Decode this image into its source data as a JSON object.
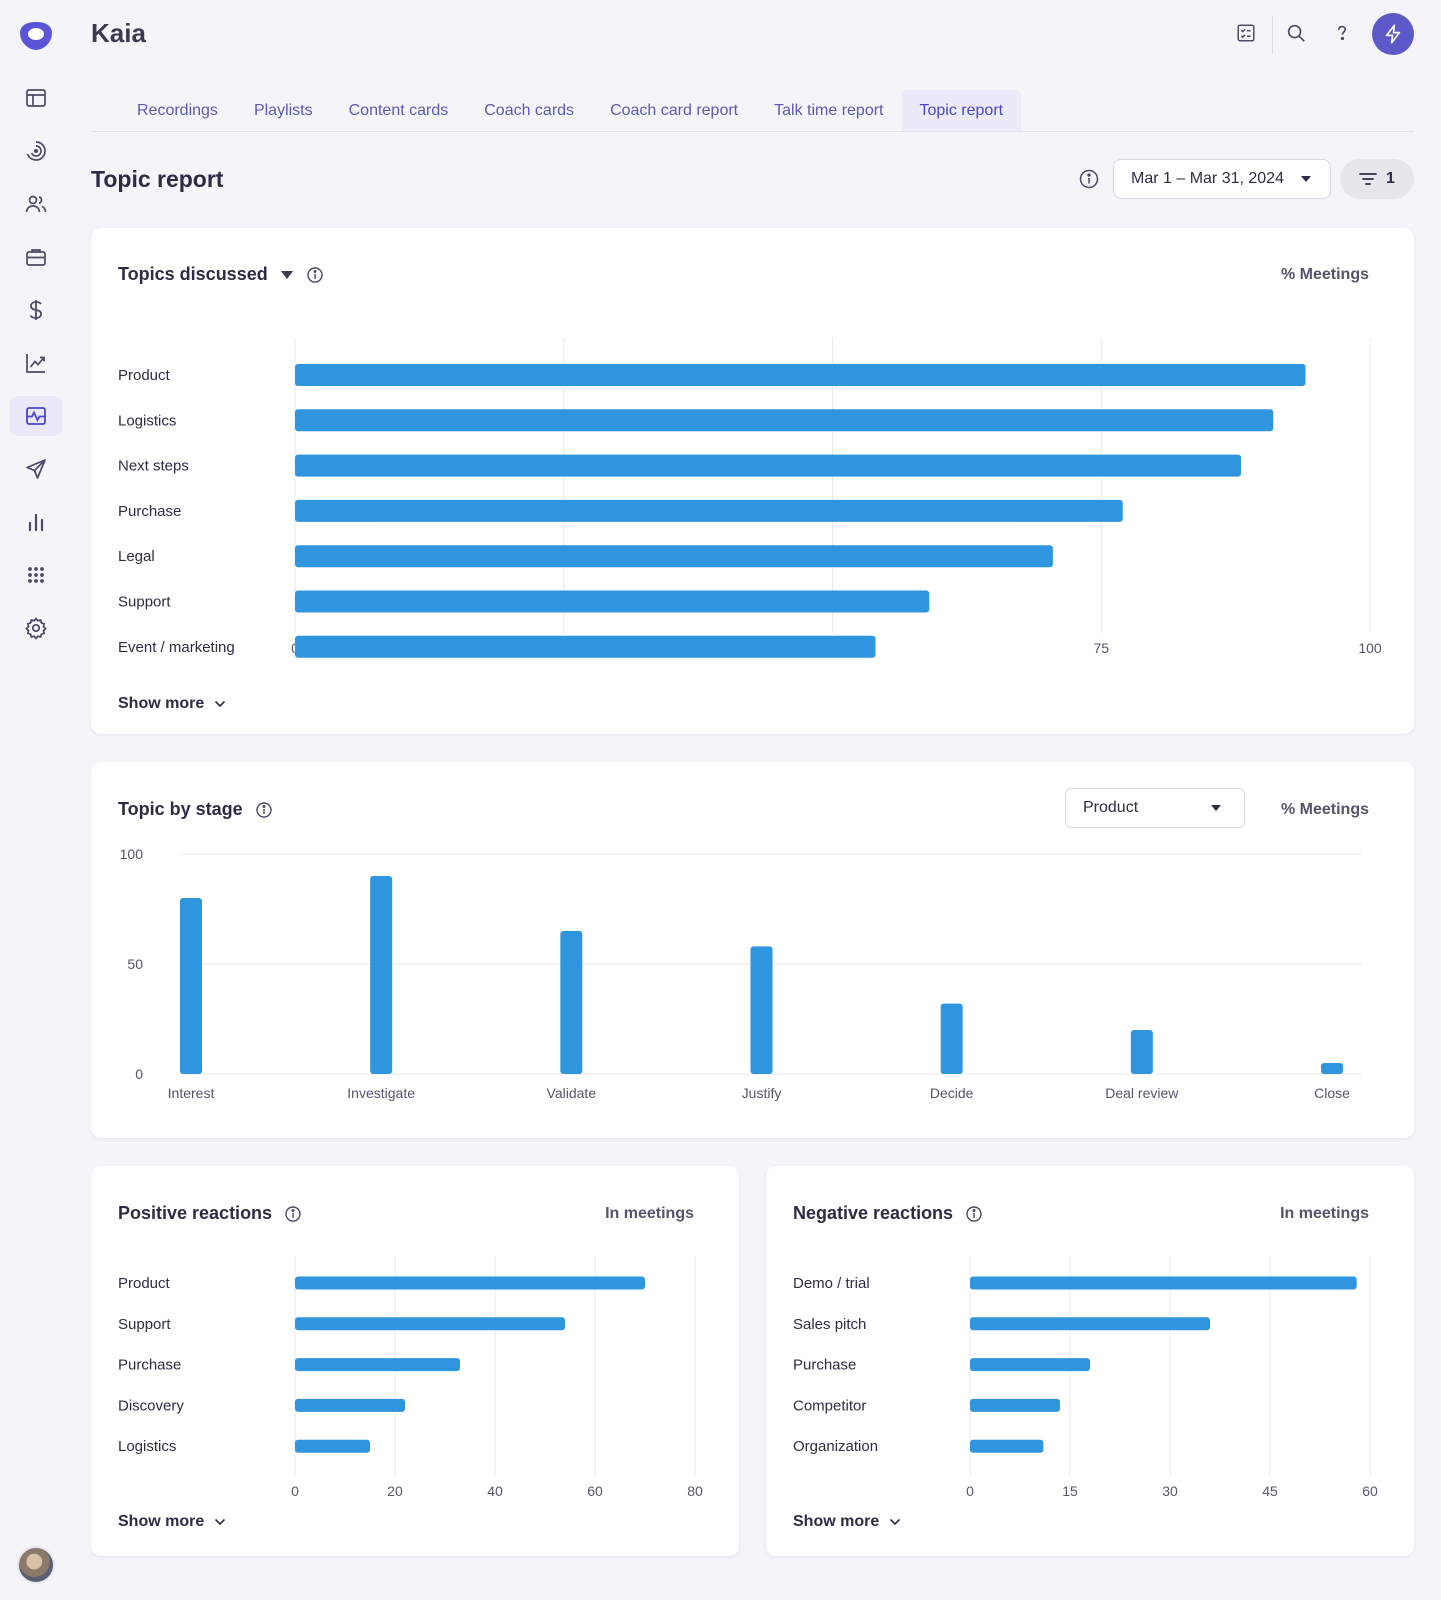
{
  "app": {
    "title": "Kaia"
  },
  "tabs": [
    {
      "label": "Recordings",
      "active": false
    },
    {
      "label": "Playlists",
      "active": false
    },
    {
      "label": "Content cards",
      "active": false
    },
    {
      "label": "Coach cards",
      "active": false
    },
    {
      "label": "Coach card report",
      "active": false
    },
    {
      "label": "Talk time report",
      "active": false
    },
    {
      "label": "Topic report",
      "active": true
    }
  ],
  "sidebar": {
    "items": [
      {
        "icon": "layout-icon",
        "active": false
      },
      {
        "icon": "spiral-icon",
        "active": false
      },
      {
        "icon": "people-icon",
        "active": false
      },
      {
        "icon": "briefcase-icon",
        "active": false
      },
      {
        "icon": "dollar-icon",
        "active": false
      },
      {
        "icon": "trend-chart-icon",
        "active": false
      },
      {
        "icon": "activity-icon",
        "active": true
      },
      {
        "icon": "send-icon",
        "active": false
      },
      {
        "icon": "bar-chart-icon",
        "active": false
      },
      {
        "icon": "apps-grid-icon",
        "active": false
      },
      {
        "icon": "settings-icon",
        "active": false
      }
    ]
  },
  "header": {
    "icons": [
      "checklist-icon",
      "search-icon",
      "help-icon",
      "bolt-icon"
    ]
  },
  "page": {
    "title": "Topic report",
    "date_range": "Mar 1 – Mar 31, 2024",
    "filter_count": "1"
  },
  "colors": {
    "accent": "#5d59c9",
    "bar": "#2f95de",
    "tab_text": "#5d59b4"
  },
  "cards": {
    "topics_discussed": {
      "title": "Topics discussed",
      "unit": "% Meetings",
      "show_more": "Show more"
    },
    "topic_by_stage": {
      "title": "Topic by stage",
      "unit": "% Meetings",
      "select_value": "Product"
    },
    "positive": {
      "title": "Positive reactions",
      "unit": "In meetings",
      "show_more": "Show more"
    },
    "negative": {
      "title": "Negative reactions",
      "unit": "In meetings",
      "show_more": "Show more"
    }
  },
  "chart_data": [
    {
      "type": "bar",
      "orientation": "horizontal",
      "title": "Topics discussed",
      "unit": "% Meetings",
      "categories": [
        "Product",
        "Logistics",
        "Next steps",
        "Purchase",
        "Legal",
        "Support",
        "Event / marketing"
      ],
      "values": [
        94,
        91,
        88,
        77,
        70.5,
        59,
        54
      ],
      "xlim": [
        0,
        100
      ],
      "ticks": [
        "0",
        "25",
        "50",
        "75",
        "100"
      ],
      "grid": true
    },
    {
      "type": "bar",
      "orientation": "vertical",
      "title": "Topic by stage",
      "unit": "% Meetings",
      "categories": [
        "Interest",
        "Investigate",
        "Validate",
        "Justify",
        "Decide",
        "Deal review",
        "Close"
      ],
      "values": [
        80,
        90,
        65,
        58,
        32,
        20,
        5
      ],
      "ylim": [
        0,
        100
      ],
      "ticks": [
        "0",
        "50",
        "100"
      ],
      "grid": true
    },
    {
      "type": "bar",
      "orientation": "horizontal",
      "title": "Positive reactions",
      "unit": "In meetings",
      "categories": [
        "Product",
        "Support",
        "Purchase",
        "Discovery",
        "Logistics"
      ],
      "values": [
        70,
        54,
        33,
        22,
        15
      ],
      "xlim": [
        0,
        80
      ],
      "ticks": [
        "0",
        "20",
        "40",
        "60",
        "80"
      ],
      "grid": true
    },
    {
      "type": "bar",
      "orientation": "horizontal",
      "title": "Negative reactions",
      "unit": "In meetings",
      "categories": [
        "Demo / trial",
        "Sales pitch",
        "Purchase",
        "Competitor",
        "Organization"
      ],
      "values": [
        58,
        36,
        18,
        13.5,
        11
      ],
      "xlim": [
        0,
        60
      ],
      "ticks": [
        "0",
        "15",
        "30",
        "45",
        "60"
      ],
      "grid": true
    }
  ]
}
